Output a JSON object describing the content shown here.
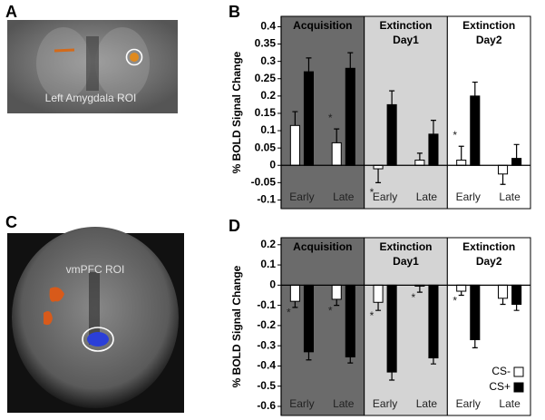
{
  "panel_labels": [
    "A",
    "B",
    "C",
    "D"
  ],
  "images": [
    {
      "label": "Left Amygdala ROI"
    },
    {
      "label": "vmPFC ROI"
    }
  ],
  "chart_data": [
    {
      "type": "bar",
      "y_label": "% BOLD Signal Change",
      "sections": [
        {
          "title": [
            "Acquisition"
          ],
          "color": "#6b6b6b"
        },
        {
          "title": [
            "Extinction",
            "Day1"
          ],
          "color": "#d4d4d4"
        },
        {
          "title": [
            "Extinction",
            "Day2"
          ],
          "color": "#ffffff"
        }
      ],
      "categories": [
        "Early",
        "Late",
        "Early",
        "Late",
        "Early",
        "Late"
      ],
      "series": [
        {
          "color": "#ffffff",
          "values": [
            0.115,
            0.065,
            -0.01,
            0.015,
            0.015,
            -0.025
          ],
          "errors": [
            0.04,
            0.04,
            0.04,
            0.02,
            0.04,
            0.03
          ],
          "significance": [
            null,
            "*",
            "*",
            null,
            "*",
            null
          ]
        },
        {
          "color": "#000000",
          "values": [
            0.27,
            0.28,
            0.175,
            0.09,
            0.2,
            0.02
          ],
          "errors": [
            0.04,
            0.045,
            0.04,
            0.04,
            0.04,
            0.04
          ]
        }
      ],
      "ylim": [
        -0.125,
        0.43
      ],
      "yticks": [
        0.4,
        0.35,
        0.3,
        0.25,
        0.2,
        0.15,
        0.1,
        0.05,
        0,
        -0.05,
        -0.1
      ]
    },
    {
      "type": "bar",
      "y_label": "% BOLD Signal Change",
      "sections": [
        {
          "title": [
            "Acquisition"
          ],
          "color": "#6b6b6b"
        },
        {
          "title": [
            "Extinction",
            "Day1"
          ],
          "color": "#d4d4d4"
        },
        {
          "title": [
            "Extinction",
            "Day2"
          ],
          "color": "#ffffff"
        }
      ],
      "categories": [
        "Early",
        "Late",
        "Early",
        "Late",
        "Early",
        "Late"
      ],
      "series": [
        {
          "name": "CS-",
          "color": "#ffffff",
          "values": [
            -0.08,
            -0.07,
            -0.085,
            -0.005,
            -0.03,
            -0.065
          ],
          "errors": [
            0.03,
            0.03,
            0.04,
            0.03,
            0.02,
            0.03
          ],
          "significance": [
            "*",
            "*",
            "*",
            "*",
            "*",
            null
          ]
        },
        {
          "name": "CS+",
          "color": "#000000",
          "values": [
            -0.33,
            -0.355,
            -0.43,
            -0.36,
            -0.27,
            -0.095
          ],
          "errors": [
            0.04,
            0.03,
            0.04,
            0.03,
            0.04,
            0.03
          ]
        }
      ],
      "ylim": [
        -0.645,
        0.235
      ],
      "yticks": [
        0.2,
        0.1,
        0,
        -0.1,
        -0.2,
        -0.3,
        -0.4,
        -0.5,
        -0.6
      ],
      "legend": "lower right"
    }
  ]
}
